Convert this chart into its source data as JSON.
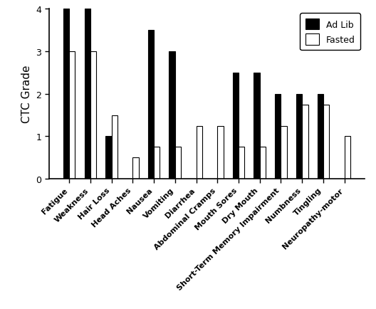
{
  "categories": [
    "Fatigue",
    "Weakness",
    "Hair Loss",
    "Head Aches",
    "Nausea",
    "Vomiting",
    "Diarrhea",
    "Abdominal Cramps",
    "Mouth Sores",
    "Dry Mouth",
    "Short-Term Memory Impairment",
    "Numbness",
    "Tingling",
    "Neuropathy-motor"
  ],
  "ad_lib": [
    4,
    4,
    1,
    0,
    3.5,
    3,
    0,
    0,
    2.5,
    2.5,
    2,
    2,
    2,
    0
  ],
  "fasted": [
    3,
    3,
    1.5,
    0.5,
    0.75,
    0.75,
    1.25,
    1.25,
    0.75,
    0.75,
    1.25,
    1.75,
    1.75,
    1
  ],
  "ad_lib_color": "#000000",
  "fasted_color": "#ffffff",
  "fasted_edge_color": "#000000",
  "ylabel": "CTC Grade",
  "ylim": [
    0,
    4
  ],
  "yticks": [
    0,
    1,
    2,
    3,
    4
  ],
  "legend_labels": [
    "Ad Lib",
    "Fasted"
  ],
  "bar_width": 0.28,
  "figsize": [
    5.28,
    4.35
  ],
  "dpi": 100,
  "tick_fontsize": 9,
  "ylabel_fontsize": 11,
  "xlabel_fontsize": 8,
  "legend_fontsize": 9
}
